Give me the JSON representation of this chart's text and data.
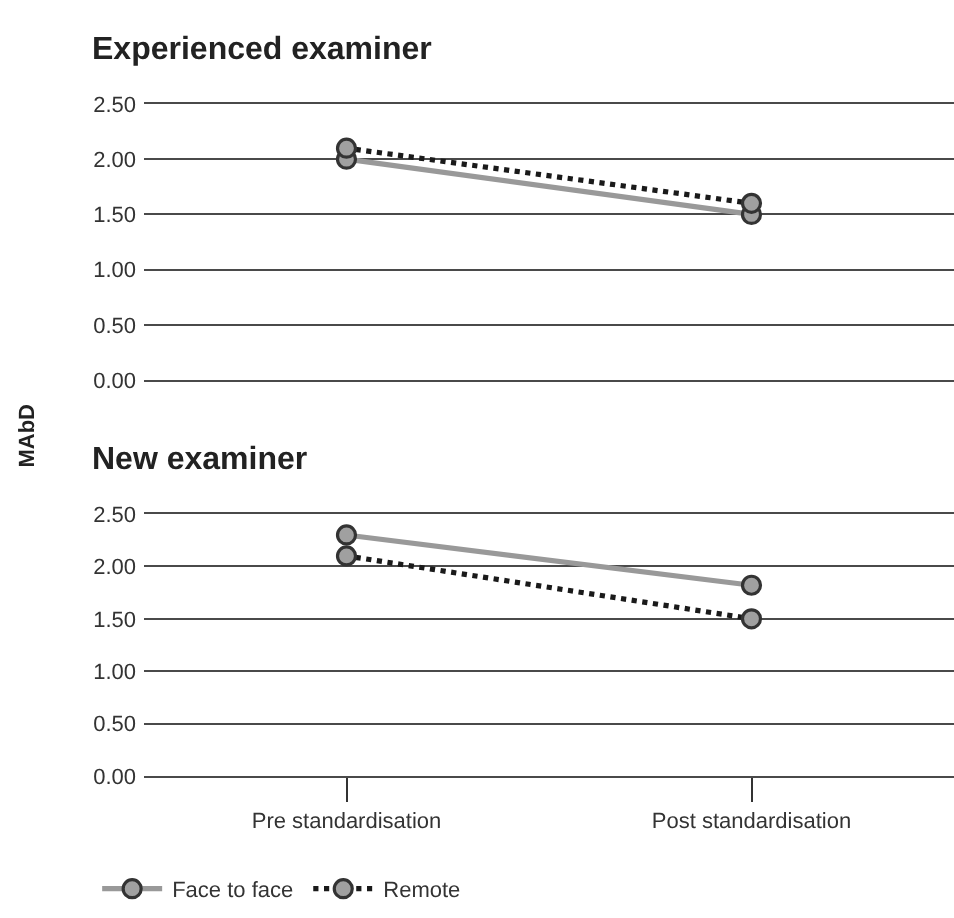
{
  "chart_data": [
    {
      "type": "line",
      "title": "Experienced examiner",
      "ylabel": "MAbD",
      "categories": [
        null,
        null
      ],
      "series": [
        {
          "color": "#999999",
          "line_style": "solid",
          "values": [
            2.0,
            1.5
          ]
        },
        {
          "color": "#1a1a1a",
          "line_style": "dotted",
          "values": [
            2.1,
            1.6
          ]
        }
      ],
      "ylim": [
        0,
        2.5
      ],
      "yticks": [
        {
          "value": 0,
          "label": "0.00"
        },
        {
          "value": 0.5,
          "label": "0.50"
        },
        {
          "value": 1,
          "label": "1.00"
        },
        {
          "value": 1.5,
          "label": "1.50"
        },
        {
          "value": 2,
          "label": "2.00"
        },
        {
          "value": 2.5,
          "label": "2.50"
        }
      ],
      "grid": "y",
      "marker": "circle",
      "tick_labels": "y"
    },
    {
      "type": "line",
      "title": "New examiner",
      "categories": [
        "Pre standardisation",
        "Post standardisation"
      ],
      "series": [
        {
          "name": "Face to face",
          "color": "#999999",
          "line_style": "solid",
          "values": [
            2.3,
            1.82
          ]
        },
        {
          "name": "Remote",
          "color": "#1a1a1a",
          "line_style": "dotted",
          "values": [
            2.1,
            1.5
          ]
        }
      ],
      "ylim": [
        0,
        2.5
      ],
      "yticks": [
        {
          "value": 0,
          "label": "0.00"
        },
        {
          "value": 0.5,
          "label": "0.50"
        },
        {
          "value": 1,
          "label": "1.00"
        },
        {
          "value": 1.5,
          "label": "1.50"
        },
        {
          "value": 2,
          "label": "2.00"
        },
        {
          "value": 2.5,
          "label": "2.50"
        }
      ],
      "grid": "y",
      "marker": "circle",
      "legend": "bottom"
    }
  ]
}
